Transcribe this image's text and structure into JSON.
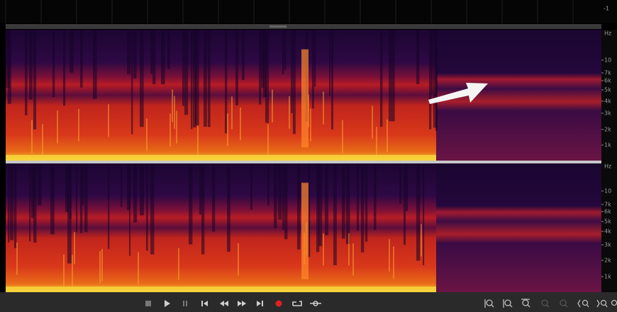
{
  "top_ruler": {
    "label": "-1"
  },
  "channels": [
    {
      "freq_labels": [
        "Hz",
        "10",
        "7k",
        "6k",
        "5k",
        "4k",
        "3k",
        "2k",
        "1k"
      ]
    },
    {
      "freq_labels": [
        "Hz",
        "10",
        "7k",
        "6k",
        "5k",
        "4k",
        "3k",
        "2k",
        "1k"
      ]
    }
  ]
}
